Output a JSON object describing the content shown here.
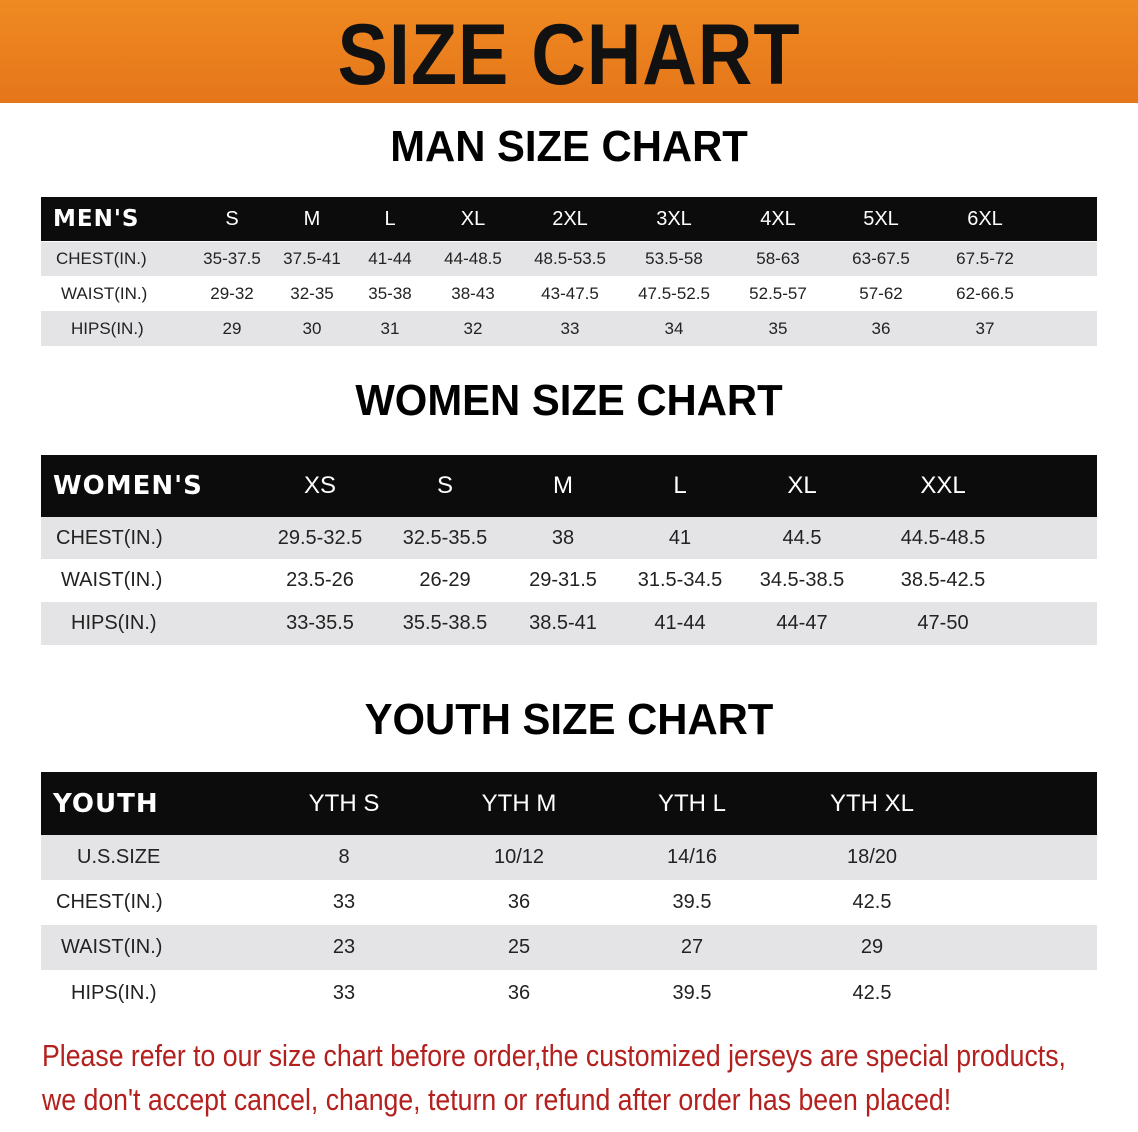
{
  "banner_title": "SIZE CHART",
  "accent_color": "#e8801e",
  "men": {
    "title": "MAN SIZE CHART",
    "header_label": "MEN'S",
    "sizes": [
      "S",
      "M",
      "L",
      "XL",
      "2XL",
      "3XL",
      "4XL",
      "5XL",
      "6XL"
    ],
    "rows": [
      {
        "label": "CHEST(IN.)",
        "values": [
          "35-37.5",
          "37.5-41",
          "41-44",
          "44-48.5",
          "48.5-53.5",
          "53.5-58",
          "58-63",
          "63-67.5",
          "67.5-72"
        ]
      },
      {
        "label": "WAIST(IN.)",
        "values": [
          "29-32",
          "32-35",
          "35-38",
          "38-43",
          "43-47.5",
          "47.5-52.5",
          "52.5-57",
          "57-62",
          "62-66.5"
        ]
      },
      {
        "label": "HIPS(IN.)",
        "values": [
          "29",
          "30",
          "31",
          "32",
          "33",
          "34",
          "35",
          "36",
          "37"
        ]
      }
    ]
  },
  "women": {
    "title": "WOMEN SIZE CHART",
    "header_label": "WOMEN'S",
    "sizes": [
      "XS",
      "S",
      "M",
      "L",
      "XL",
      "XXL"
    ],
    "rows": [
      {
        "label": "CHEST(IN.)",
        "values": [
          "29.5-32.5",
          "32.5-35.5",
          "38",
          "41",
          "44.5",
          "44.5-48.5"
        ]
      },
      {
        "label": "WAIST(IN.)",
        "values": [
          "23.5-26",
          "26-29",
          "29-31.5",
          "31.5-34.5",
          "34.5-38.5",
          "38.5-42.5"
        ]
      },
      {
        "label": "HIPS(IN.)",
        "values": [
          "33-35.5",
          "35.5-38.5",
          "38.5-41",
          "41-44",
          "44-47",
          "47-50"
        ]
      }
    ]
  },
  "youth": {
    "title": "YOUTH SIZE CHART",
    "header_label": "YOUTH",
    "sizes": [
      "YTH S",
      "YTH M",
      "YTH L",
      "YTH XL"
    ],
    "rows": [
      {
        "label": "U.S.SIZE",
        "values": [
          "8",
          "10/12",
          "14/16",
          "18/20"
        ]
      },
      {
        "label": "CHEST(IN.)",
        "values": [
          "33",
          "36",
          "39.5",
          "42.5"
        ]
      },
      {
        "label": "WAIST(IN.)",
        "values": [
          "23",
          "25",
          "27",
          "29"
        ]
      },
      {
        "label": "HIPS(IN.)",
        "values": [
          "33",
          "36",
          "39.5",
          "42.5"
        ]
      }
    ]
  },
  "notice": {
    "line1": "Please refer to our size chart before order,the customized jerseys are special products,",
    "line2": "we don't accept cancel, change, teturn or refund after order has been placed!"
  }
}
